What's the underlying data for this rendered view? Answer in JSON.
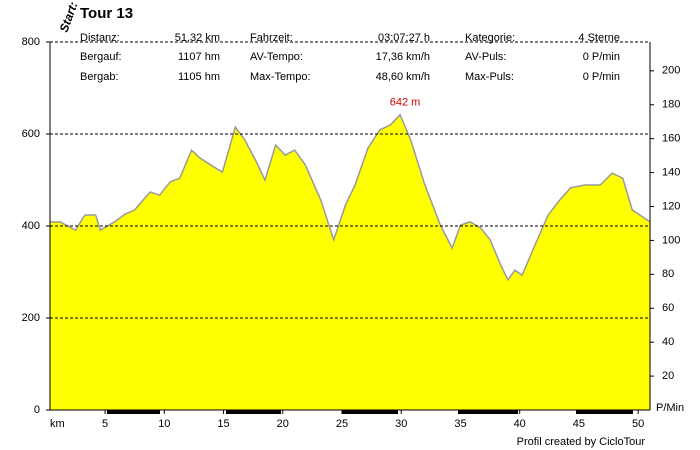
{
  "chart_data": {
    "type": "area",
    "title": "Tour 13",
    "start_label": "Start:",
    "credit": "Profil created by CicloTour",
    "stats": [
      [
        {
          "label": "Distanz:",
          "value": "51,32 km"
        },
        {
          "label": "Fahrzeit:",
          "value": "03:07:27 h"
        },
        {
          "label": "Kategorie:",
          "value": "4 Sterne"
        }
      ],
      [
        {
          "label": "Bergauf:",
          "value": "1107 hm"
        },
        {
          "label": "AV-Tempo:",
          "value": "17,36 km/h"
        },
        {
          "label": "AV-Puls:",
          "value": "0 P/min"
        }
      ],
      [
        {
          "label": "Bergab:",
          "value": "1105 hm"
        },
        {
          "label": "Max-Tempo:",
          "value": "48,60 km/h"
        },
        {
          "label": "Max-Puls:",
          "value": "0 P/min"
        }
      ]
    ],
    "x_label": "km",
    "y2_label": "P/Min",
    "x": [
      0.35,
      1.2,
      2.5,
      3.3,
      4.2,
      4.6,
      5.8,
      6.7,
      7.5,
      8.8,
      9.6,
      10.5,
      11.3,
      12.3,
      13.0,
      13.9,
      14.9,
      16.0,
      16.8,
      17.7,
      18.5,
      19.4,
      20.2,
      21.0,
      21.9,
      23.2,
      24.3,
      25.3,
      26.1,
      27.2,
      28.2,
      29.1,
      29.9,
      30.8,
      32.0,
      33.3,
      34.3,
      35.0,
      35.8,
      36.7,
      37.5,
      38.4,
      39.0,
      39.6,
      40.2,
      41.3,
      42.4,
      43.4,
      44.3,
      45.5,
      46.8,
      47.8,
      48.7,
      49.5,
      51.0
    ],
    "series": [
      {
        "color": "#ffff00",
        "values": [
          409,
          409,
          391,
          424,
          424,
          391,
          409,
          426,
          435,
          474,
          467,
          496,
          504,
          565,
          548,
          533,
          517,
          615,
          587,
          543,
          500,
          576,
          554,
          565,
          533,
          457,
          370,
          446,
          489,
          570,
          609,
          620,
          642,
          587,
          489,
          402,
          352,
          402,
          409,
          396,
          370,
          315,
          283,
          304,
          293,
          359,
          424,
          457,
          483,
          489,
          489,
          515,
          504,
          435,
          409
        ]
      }
    ],
    "annotation": {
      "x": 29.9,
      "y": 642,
      "text": "642 m",
      "color": "#cc0000"
    },
    "xlim": [
      0.35,
      51
    ],
    "xticks": [
      5,
      10,
      15,
      20,
      25,
      30,
      35,
      40,
      45,
      50
    ],
    "ylim": [
      0,
      800
    ],
    "yticks": [
      0,
      200,
      400,
      600,
      800
    ],
    "y2lim": [
      0,
      217
    ],
    "y2ticks": [
      20,
      40,
      60,
      80,
      100,
      120,
      140,
      160,
      180,
      200
    ],
    "grid": true
  }
}
